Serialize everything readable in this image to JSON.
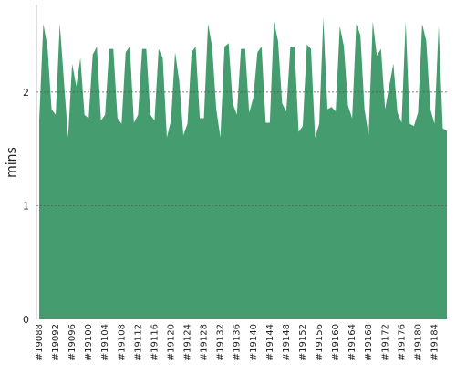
{
  "chart_data": {
    "type": "area",
    "ylabel": "mins",
    "color": "#459c6e",
    "categories": [
      "#19088",
      null,
      null,
      null,
      "#19092",
      null,
      null,
      null,
      "#19096",
      null,
      null,
      null,
      "#19100",
      null,
      null,
      null,
      "#19104",
      null,
      null,
      null,
      "#19108",
      null,
      null,
      null,
      "#19112",
      null,
      null,
      null,
      "#19116",
      null,
      null,
      null,
      "#19120",
      null,
      null,
      null,
      "#19124",
      null,
      null,
      null,
      "#19128",
      null,
      null,
      null,
      "#19132",
      null,
      null,
      null,
      "#19136",
      null,
      null,
      null,
      "#19140",
      null,
      null,
      null,
      "#19144",
      null,
      null,
      null,
      "#19148",
      null,
      null,
      null,
      "#19152",
      null,
      null,
      null,
      "#19156",
      null,
      null,
      null,
      "#19160",
      null,
      null,
      null,
      "#19164",
      null,
      null,
      null,
      "#19168",
      null,
      null,
      null,
      "#19172",
      null,
      null,
      null,
      "#19176",
      null,
      null,
      null,
      "#19180",
      null,
      null,
      null,
      "#19184",
      null,
      null,
      null
    ],
    "values": [
      1.75,
      2.6,
      2.4,
      1.85,
      1.8,
      2.6,
      2.1,
      1.6,
      2.25,
      2.05,
      2.3,
      1.8,
      1.77,
      2.33,
      2.4,
      1.75,
      1.8,
      2.38,
      2.38,
      1.77,
      1.72,
      2.35,
      2.4,
      1.73,
      1.8,
      2.38,
      2.38,
      1.8,
      1.75,
      2.38,
      2.3,
      1.6,
      1.75,
      2.35,
      2.1,
      1.62,
      1.72,
      2.35,
      2.4,
      1.77,
      1.77,
      2.6,
      2.4,
      1.85,
      1.6,
      2.4,
      2.43,
      1.9,
      1.8,
      2.38,
      2.38,
      1.82,
      1.95,
      2.35,
      2.4,
      1.73,
      1.73,
      2.62,
      2.45,
      1.9,
      1.83,
      2.4,
      2.4,
      1.65,
      1.7,
      2.42,
      2.38,
      1.6,
      1.72,
      2.65,
      1.85,
      1.87,
      1.83,
      2.58,
      2.4,
      1.88,
      1.77,
      2.6,
      2.5,
      1.85,
      1.62,
      2.62,
      2.32,
      2.38,
      1.85,
      2.05,
      2.25,
      1.82,
      1.73,
      2.62,
      1.72,
      1.7,
      1.82,
      2.6,
      2.45,
      1.85,
      1.72,
      2.58,
      1.68,
      1.66
    ],
    "ylim": [
      0,
      2.77
    ],
    "yticks": [
      0,
      1,
      2
    ],
    "grid": true
  }
}
